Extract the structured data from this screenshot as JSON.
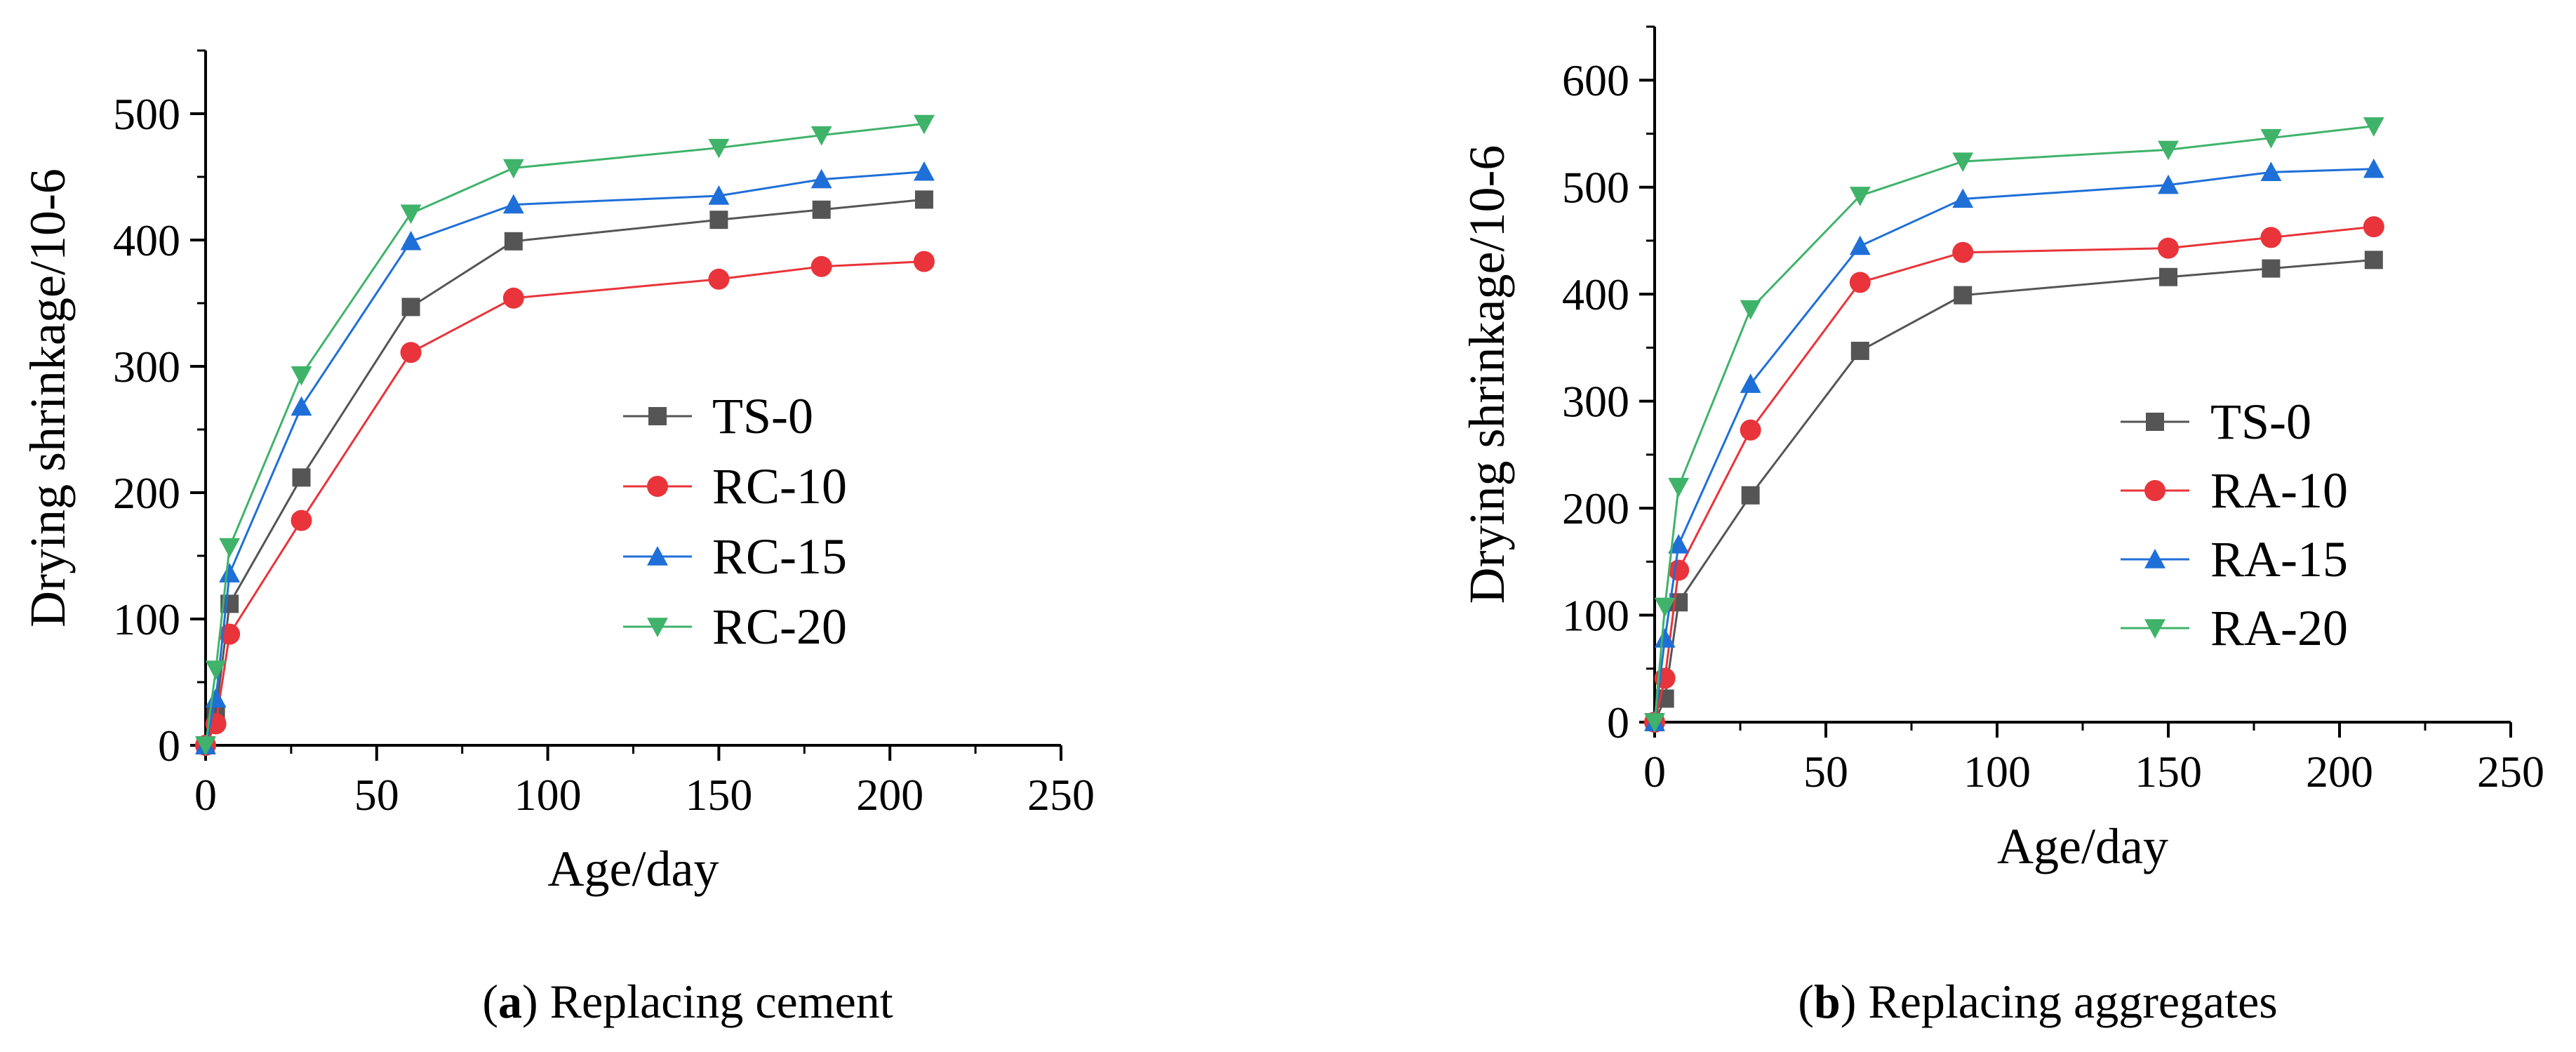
{
  "figure": {
    "colors": {
      "TS-0": "#555555",
      "RC-10": "#e8343a",
      "RC-15": "#1f6fd8",
      "RC-20": "#3fb36a",
      "RA-10": "#e8343a",
      "RA-15": "#1f6fd8",
      "RA-20": "#3fb36a"
    },
    "markers": {
      "TS-0": "square",
      "RC-10": "circle",
      "RC-15": "triangle-up",
      "RC-20": "triangle-down",
      "RA-10": "circle",
      "RA-15": "triangle-up",
      "RA-20": "triangle-down"
    }
  },
  "chart_data": [
    {
      "type": "line",
      "panel_label": "a",
      "caption_text": " Replacing cement",
      "title": "",
      "xlabel": "Age/day",
      "ylabel": "Drying shrinkage/10-6",
      "xlim": [
        0,
        250
      ],
      "ylim": [
        0,
        550
      ],
      "xticks": [
        0,
        50,
        100,
        150,
        200,
        250
      ],
      "yticks": [
        0,
        100,
        200,
        300,
        400,
        500
      ],
      "grid": false,
      "legend_position": "center-right",
      "x": [
        0,
        3,
        7,
        28,
        60,
        90,
        150,
        180,
        210
      ],
      "series": [
        {
          "name": "TS-0",
          "values": [
            0,
            25,
            112,
            212,
            347,
            399,
            416,
            424,
            432
          ]
        },
        {
          "name": "RC-10",
          "values": [
            0,
            17,
            88,
            178,
            311,
            354,
            369,
            379,
            383
          ]
        },
        {
          "name": "RC-15",
          "values": [
            0,
            37,
            136,
            268,
            399,
            428,
            435,
            448,
            454
          ]
        },
        {
          "name": "RC-20",
          "values": [
            0,
            60,
            157,
            293,
            421,
            457,
            473,
            483,
            492
          ]
        }
      ]
    },
    {
      "type": "line",
      "panel_label": "b",
      "caption_text": " Replacing aggregates",
      "title": "",
      "xlabel": "Age/day",
      "ylabel": "Drying shrinkage/10-6",
      "xlim": [
        0,
        250
      ],
      "ylim": [
        0,
        650
      ],
      "xticks": [
        0,
        50,
        100,
        150,
        200,
        250
      ],
      "yticks": [
        0,
        100,
        200,
        300,
        400,
        500,
        600
      ],
      "grid": false,
      "legend_position": "lower-right",
      "x": [
        0,
        3,
        7,
        28,
        60,
        90,
        150,
        180,
        210
      ],
      "series": [
        {
          "name": "TS-0",
          "values": [
            0,
            22,
            112,
            212,
            347,
            399,
            416,
            424,
            432
          ]
        },
        {
          "name": "RA-10",
          "values": [
            0,
            41,
            142,
            273,
            411,
            439,
            443,
            453,
            463
          ]
        },
        {
          "name": "RA-15",
          "values": [
            0,
            78,
            166,
            316,
            445,
            489,
            502,
            514,
            517
          ]
        },
        {
          "name": "RA-20",
          "values": [
            0,
            108,
            220,
            386,
            492,
            524,
            535,
            546,
            557
          ]
        }
      ]
    }
  ]
}
